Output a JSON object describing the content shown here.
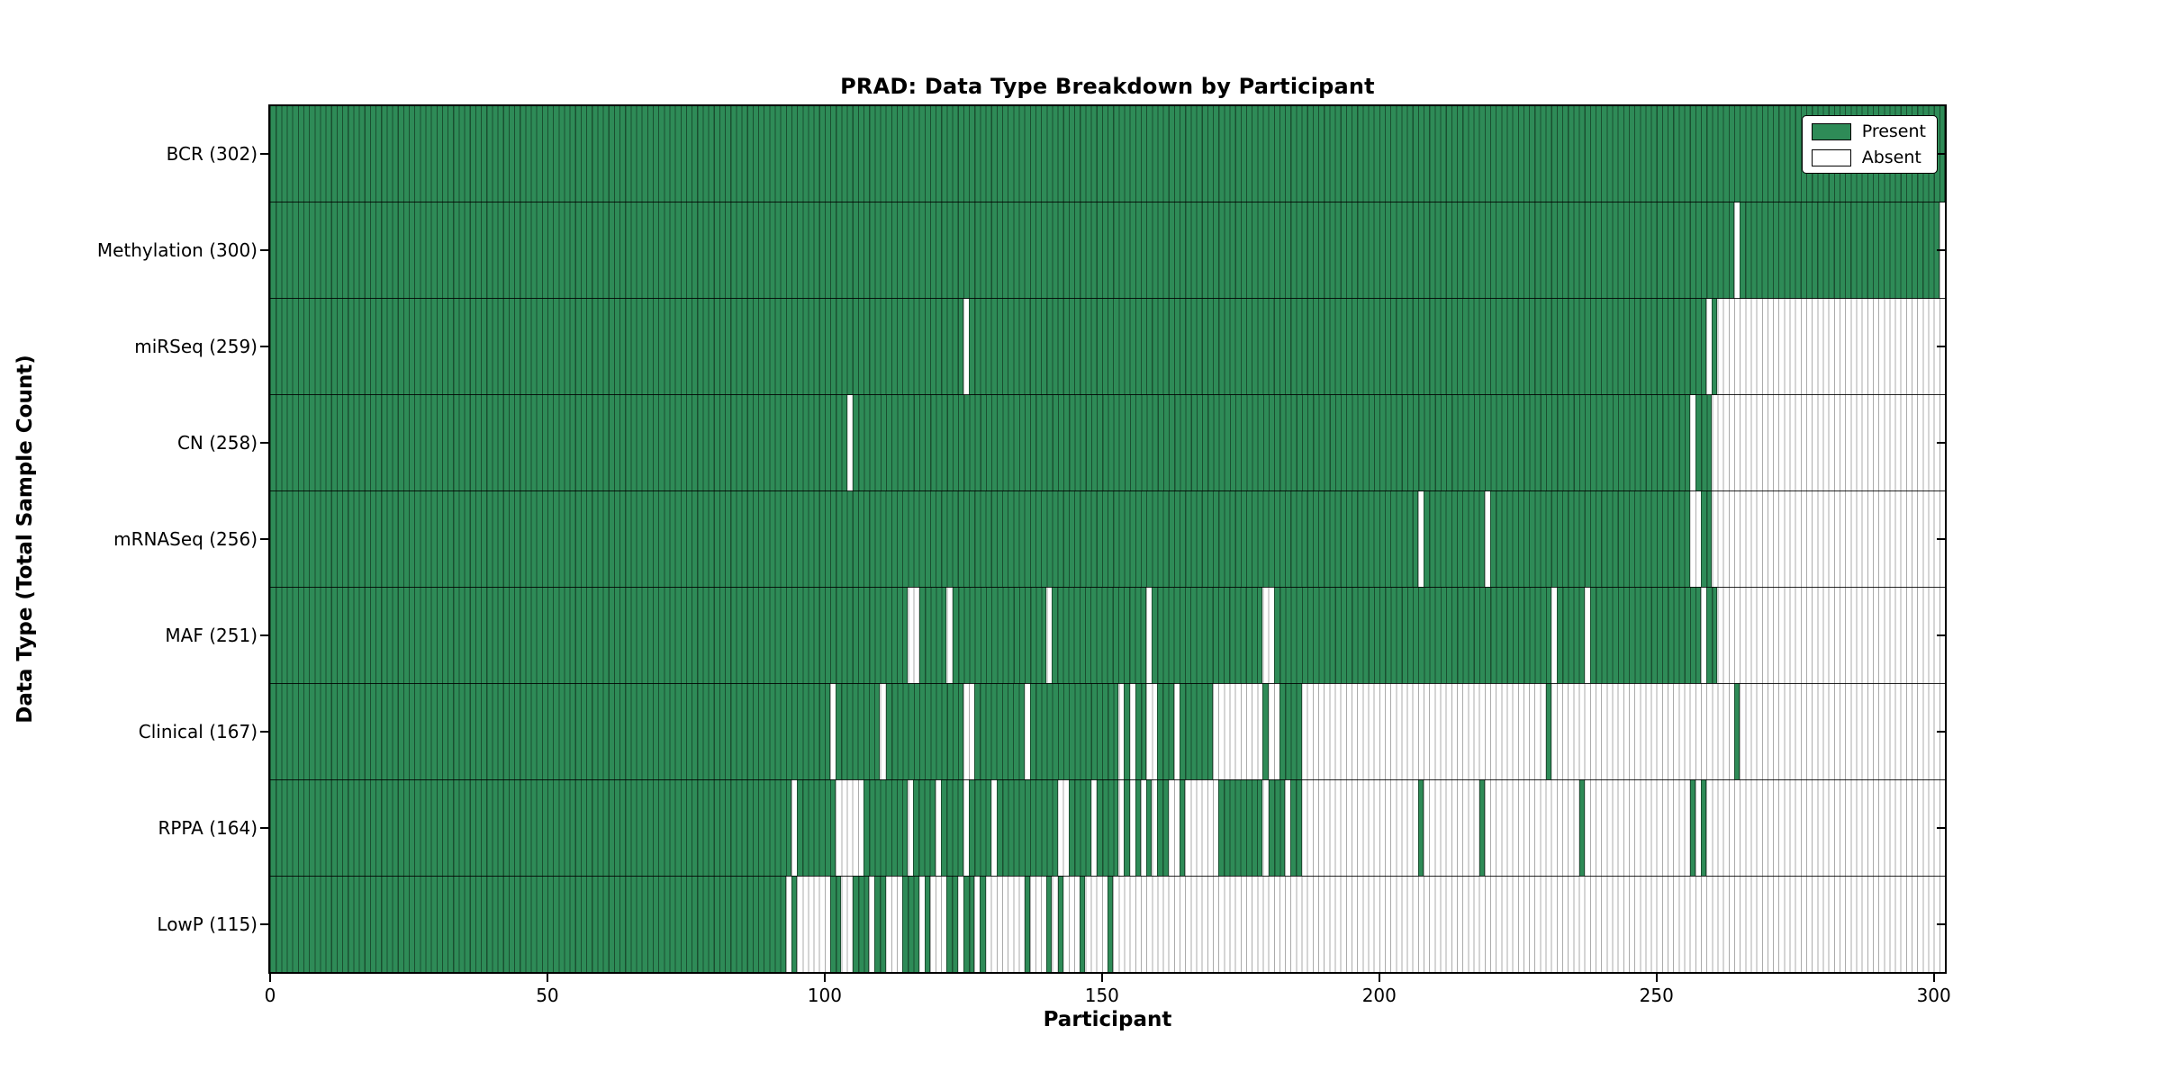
{
  "chart_data": {
    "type": "heatmap",
    "title": "PRAD: Data Type Breakdown by Participant",
    "xlabel": "Participant",
    "ylabel": "Data Type (Total Sample Count)",
    "x_ticks": [
      0,
      50,
      100,
      150,
      200,
      250,
      300
    ],
    "x_count": 302,
    "grid": false,
    "legend_position": "upper right",
    "legend": [
      {
        "label": "Present",
        "value": "present"
      },
      {
        "label": "Absent",
        "value": "absent"
      }
    ],
    "colors": {
      "present_fill": "#2e8b57",
      "present_edge": "#1a4f30",
      "absent_fill": "#ffffff",
      "absent_edge": "#ababab",
      "spine": "#000000",
      "text": "#000000"
    },
    "rows": [
      {
        "label": "BCR (302)",
        "total": 302,
        "present_runs": [
          [
            0,
            301
          ]
        ]
      },
      {
        "label": "Methylation (300)",
        "total": 300,
        "present_runs": [
          [
            0,
            263
          ],
          [
            265,
            300
          ]
        ]
      },
      {
        "label": "miRSeq (259)",
        "total": 259,
        "present_runs": [
          [
            0,
            124
          ],
          [
            126,
            258
          ],
          [
            260,
            260
          ]
        ]
      },
      {
        "label": "CN (258)",
        "total": 258,
        "present_runs": [
          [
            0,
            103
          ],
          [
            105,
            255
          ],
          [
            257,
            259
          ]
        ]
      },
      {
        "label": "mRNASeq (256)",
        "total": 256,
        "present_runs": [
          [
            0,
            206
          ],
          [
            208,
            218
          ],
          [
            220,
            255
          ],
          [
            258,
            259
          ]
        ]
      },
      {
        "label": "MAF (251)",
        "total": 251,
        "present_runs": [
          [
            0,
            114
          ],
          [
            117,
            121
          ],
          [
            123,
            139
          ],
          [
            141,
            157
          ],
          [
            159,
            178
          ],
          [
            181,
            230
          ],
          [
            232,
            236
          ],
          [
            238,
            257
          ],
          [
            259,
            260
          ]
        ]
      },
      {
        "label": "Clinical (167)",
        "total": 167,
        "present_runs": [
          [
            0,
            100
          ],
          [
            102,
            109
          ],
          [
            111,
            124
          ],
          [
            127,
            135
          ],
          [
            137,
            152
          ],
          [
            154,
            154
          ],
          [
            156,
            157
          ],
          [
            160,
            162
          ],
          [
            164,
            169
          ],
          [
            179,
            179
          ],
          [
            182,
            185
          ],
          [
            230,
            230
          ],
          [
            264,
            264
          ]
        ]
      },
      {
        "label": "RPPA (164)",
        "total": 164,
        "present_runs": [
          [
            0,
            93
          ],
          [
            95,
            101
          ],
          [
            107,
            114
          ],
          [
            116,
            119
          ],
          [
            121,
            124
          ],
          [
            126,
            129
          ],
          [
            131,
            141
          ],
          [
            144,
            147
          ],
          [
            149,
            152
          ],
          [
            154,
            154
          ],
          [
            156,
            156
          ],
          [
            158,
            158
          ],
          [
            160,
            161
          ],
          [
            164,
            164
          ],
          [
            171,
            178
          ],
          [
            180,
            182
          ],
          [
            184,
            185
          ],
          [
            207,
            207
          ],
          [
            218,
            218
          ],
          [
            236,
            236
          ],
          [
            256,
            256
          ],
          [
            258,
            258
          ]
        ]
      },
      {
        "label": "LowP (115)",
        "total": 115,
        "present_runs": [
          [
            0,
            92
          ],
          [
            94,
            94
          ],
          [
            101,
            102
          ],
          [
            105,
            107
          ],
          [
            109,
            110
          ],
          [
            114,
            116
          ],
          [
            118,
            118
          ],
          [
            122,
            123
          ],
          [
            125,
            126
          ],
          [
            128,
            128
          ],
          [
            136,
            136
          ],
          [
            140,
            140
          ],
          [
            142,
            142
          ],
          [
            146,
            146
          ],
          [
            151,
            151
          ]
        ]
      }
    ]
  }
}
